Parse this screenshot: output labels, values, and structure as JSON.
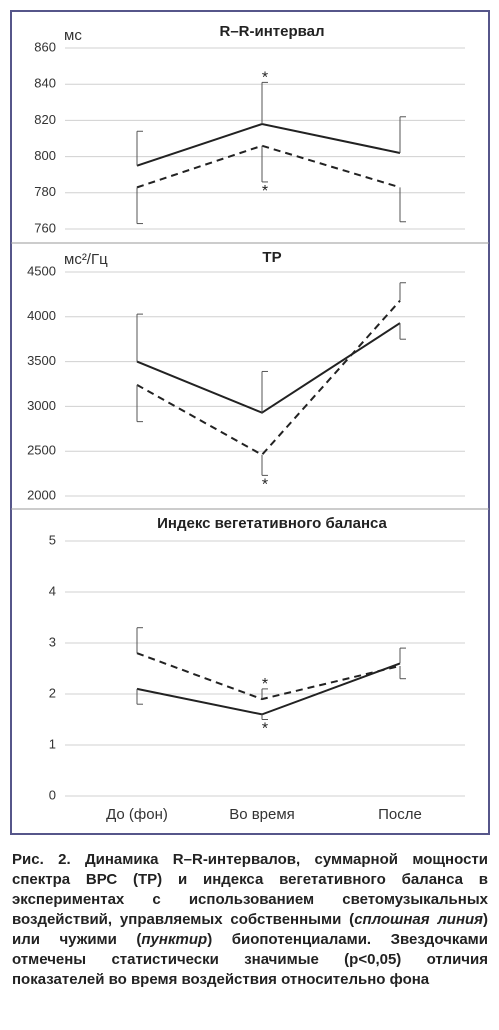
{
  "chart_data": [
    {
      "type": "line",
      "title": "R–R-интервал",
      "y_label": "мс",
      "ylim": [
        760,
        860
      ],
      "yticks": [
        760,
        780,
        800,
        820,
        840,
        860
      ],
      "grid": true,
      "series": [
        {
          "line_style": "solid",
          "color": "#222222",
          "values": [
            795,
            818,
            802
          ],
          "errors_up": [
            19,
            23,
            20
          ],
          "errors_down": [
            null,
            null,
            null
          ],
          "significance": [
            null,
            "*",
            null
          ],
          "significance_side": "above"
        },
        {
          "line_style": "dashed",
          "color": "#222222",
          "values": [
            783,
            806,
            783
          ],
          "errors_up": [
            null,
            null,
            null
          ],
          "errors_down": [
            20,
            20,
            19
          ],
          "significance": [
            null,
            "*",
            null
          ],
          "significance_side": "below"
        }
      ]
    },
    {
      "type": "line",
      "title": "TP",
      "y_label": "мс²/Гц",
      "ylim": [
        2000,
        4500
      ],
      "yticks": [
        2000,
        2500,
        3000,
        3500,
        4000,
        4500
      ],
      "grid": true,
      "series": [
        {
          "line_style": "solid",
          "color": "#222222",
          "values": [
            3500,
            2930,
            3930
          ],
          "errors_up": [
            530,
            460,
            null
          ],
          "errors_down": [
            null,
            null,
            180
          ],
          "significance": [
            null,
            null,
            null
          ],
          "significance_side": "above"
        },
        {
          "line_style": "dashed",
          "color": "#222222",
          "values": [
            3240,
            2460,
            4180
          ],
          "errors_up": [
            null,
            null,
            200
          ],
          "errors_down": [
            410,
            230,
            null
          ],
          "significance": [
            null,
            "*",
            null
          ],
          "significance_side": "below"
        }
      ]
    },
    {
      "type": "line",
      "title": "Индекс вегетативного баланса",
      "categories": [
        "До (фон)",
        "Во время",
        "После"
      ],
      "ylim": [
        0,
        5
      ],
      "yticks": [
        0,
        1,
        2,
        3,
        4,
        5
      ],
      "grid": true,
      "series": [
        {
          "line_style": "solid",
          "color": "#222222",
          "values": [
            2.1,
            1.6,
            2.6
          ],
          "errors_up": [
            null,
            null,
            0.3
          ],
          "errors_down": [
            0.3,
            0.1,
            null
          ],
          "significance": [
            null,
            "*",
            null
          ],
          "significance_side": "below"
        },
        {
          "line_style": "dashed",
          "color": "#222222",
          "values": [
            2.8,
            1.9,
            2.55
          ],
          "errors_up": [
            0.5,
            0.2,
            null
          ],
          "errors_down": [
            null,
            null,
            0.25
          ],
          "significance": [
            null,
            "*",
            null
          ],
          "significance_side": "above"
        }
      ]
    }
  ],
  "caption": [
    {
      "text": "Рис. 2. Динамика R–R-интервалов, суммарной мощности спектра ВРС (TP) и индекса вегетативного баланса в экспериментах с использованием светомузыкальных воздействий, управляемых собственными (",
      "italic": false
    },
    {
      "text": "сплошная линия",
      "italic": true
    },
    {
      "text": ") или чужими (",
      "italic": false
    },
    {
      "text": "пунктир",
      "italic": true
    },
    {
      "text": ") биопотенциалами. Звездочками отмечены статистически значимые (p<0,05) отличия показателей во время воздействия относительно фона",
      "italic": false
    }
  ]
}
